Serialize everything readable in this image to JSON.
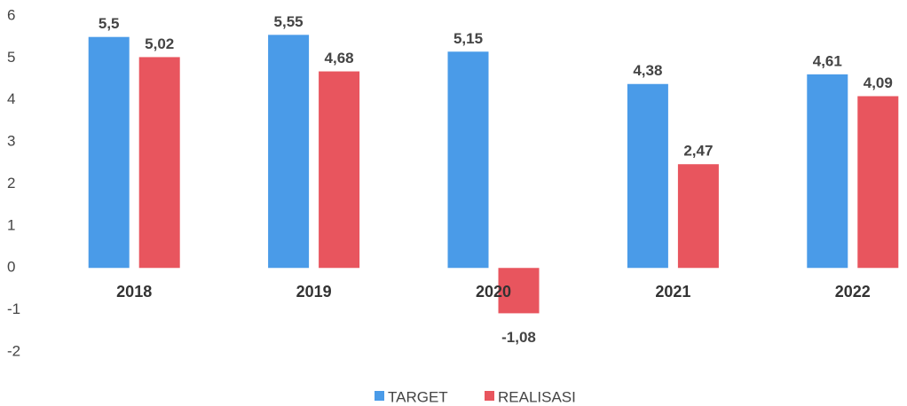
{
  "chart_data": {
    "type": "bar",
    "categories": [
      "2018",
      "2019",
      "2020",
      "2021",
      "2022"
    ],
    "series": [
      {
        "name": "TARGET",
        "color": "#4a9be8",
        "values": [
          5.5,
          5.55,
          5.15,
          4.38,
          4.61
        ],
        "value_labels": [
          "5,5",
          "5,55",
          "5,15",
          "4,38",
          "4,61"
        ]
      },
      {
        "name": "REALISASI",
        "color": "#e8555e",
        "values": [
          5.02,
          4.68,
          -1.08,
          2.47,
          4.09
        ],
        "value_labels": [
          "5,02",
          "4,68",
          "-1,08",
          "2,47",
          "4,09"
        ]
      }
    ],
    "ylim": [
      -2,
      6
    ],
    "yticks": [
      -2,
      -1,
      0,
      1,
      2,
      3,
      4,
      5,
      6
    ],
    "grid": false,
    "legend": "bottom"
  }
}
